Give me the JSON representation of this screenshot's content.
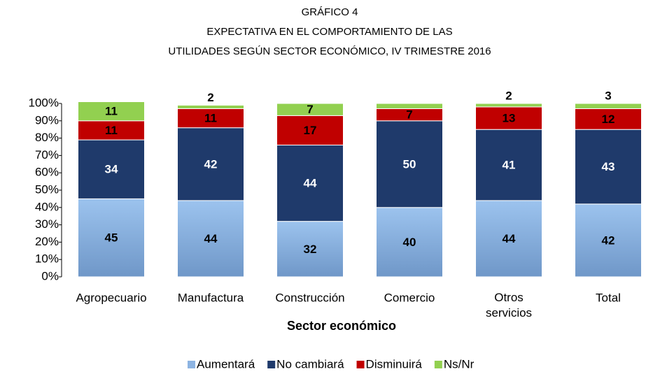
{
  "chart_data": {
    "type": "stacked_bar",
    "title_lines": [
      "GRÁFICO  4",
      "EXPECTATIVA EN EL COMPORTAMIENTO DE LAS",
      "UTILIDADES SEGÚN SECTOR ECONÓMICO, IV TRIMESTRE 2016"
    ],
    "x_label": "Sector económico",
    "categories": [
      "Agropecuario",
      "Manufactura",
      "Construcción",
      "Comercio",
      "Otros servicios",
      "Total"
    ],
    "series": [
      {
        "name": "Aumentará",
        "color": "#8db4e2",
        "values": [
          45,
          44,
          32,
          40,
          44,
          42
        ]
      },
      {
        "name": "No cambiará",
        "color": "#1f3a6b",
        "values": [
          34,
          42,
          44,
          50,
          41,
          43
        ]
      },
      {
        "name": "Disminuirá",
        "color": "#c00000",
        "values": [
          11,
          11,
          17,
          7,
          13,
          12
        ]
      },
      {
        "name": "Ns/Nr",
        "color": "#92d050",
        "values": [
          11,
          2,
          7,
          3,
          2,
          3
        ],
        "value_labels": [
          "11",
          "2",
          "7",
          null,
          "2",
          "3"
        ]
      }
    ],
    "ylim": [
      0,
      100
    ],
    "yticks": [
      {
        "value": 0,
        "label": "0%"
      },
      {
        "value": 10,
        "label": "10%"
      },
      {
        "value": 20,
        "label": "20%"
      },
      {
        "value": 30,
        "label": "30%"
      },
      {
        "value": 40,
        "label": "40%"
      },
      {
        "value": 50,
        "label": "50%"
      },
      {
        "value": 60,
        "label": "60%"
      },
      {
        "value": 70,
        "label": "70%"
      },
      {
        "value": 80,
        "label": "80%"
      },
      {
        "value": 90,
        "label": "90%"
      },
      {
        "value": 100,
        "label": "100%"
      }
    ],
    "legend": "bottom"
  }
}
